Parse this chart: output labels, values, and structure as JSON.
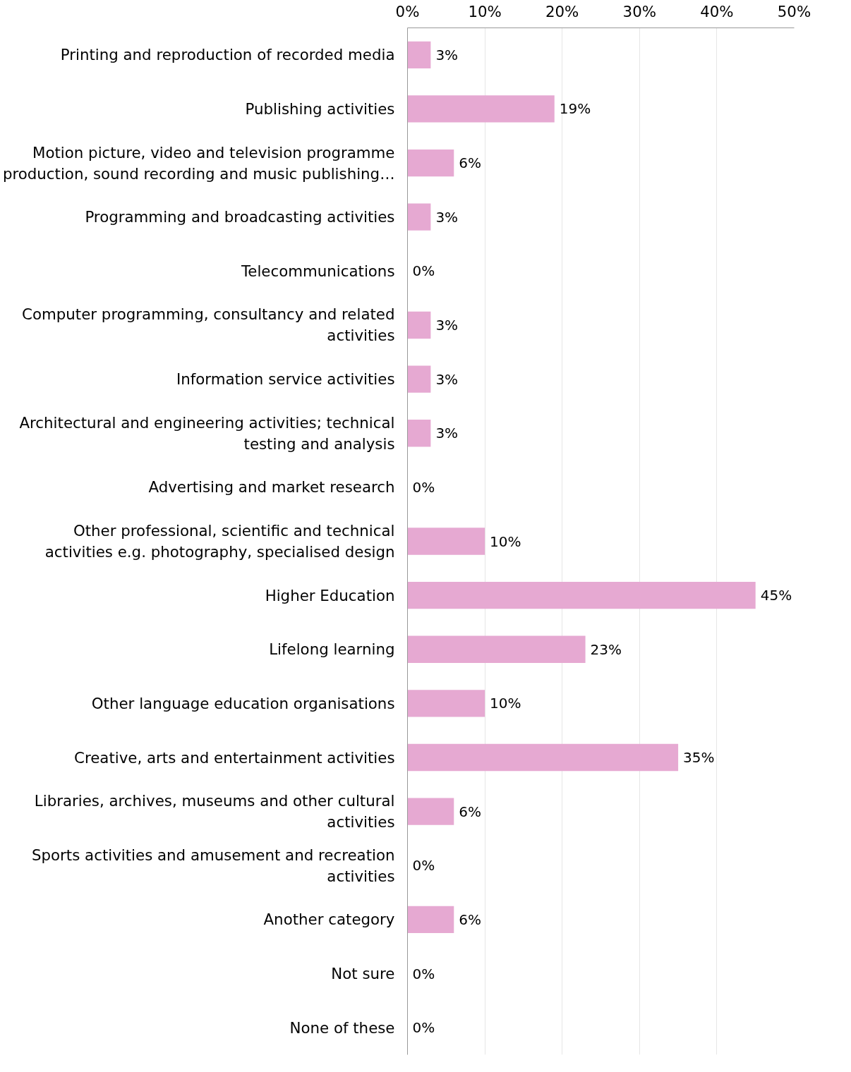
{
  "chart_data": {
    "type": "bar",
    "orientation": "horizontal",
    "categories": [
      "Printing and reproduction of recorded media",
      "Publishing activities",
      "Motion picture, video and television programme\nproduction, sound recording and music publishing…",
      "Programming and broadcasting activities",
      "Telecommunications",
      "Computer programming, consultancy and related\nactivities",
      "Information service activities",
      "Architectural and engineering activities; technical\ntesting and analysis",
      "Advertising and market research",
      "Other professional, scientific and technical\nactivities e.g. photography, specialised design",
      "Higher Education",
      "Lifelong learning",
      "Other language education organisations",
      "Creative, arts and entertainment activities",
      "Libraries, archives, museums and other cultural\nactivities",
      "Sports activities and amusement and recreation\nactivities",
      "Another category",
      "Not sure",
      "None of these"
    ],
    "values": [
      3,
      19,
      6,
      3,
      0,
      3,
      3,
      3,
      0,
      10,
      45,
      23,
      10,
      35,
      6,
      0,
      6,
      0,
      0
    ],
    "color": "#e6a9d2",
    "xlim": [
      0,
      50
    ],
    "xticks": [
      {
        "value": 0,
        "label": "0%"
      },
      {
        "value": 10,
        "label": "10%"
      },
      {
        "value": 20,
        "label": "20%"
      },
      {
        "value": 30,
        "label": "30%"
      },
      {
        "value": 40,
        "label": "40%"
      },
      {
        "value": 50,
        "label": "50%"
      }
    ],
    "value_labels": [
      "3%",
      "19%",
      "6%",
      "3%",
      "0%",
      "3%",
      "3%",
      "3%",
      "0%",
      "10%",
      "45%",
      "23%",
      "10%",
      "35%",
      "6%",
      "0%",
      "6%",
      "0%",
      "0%"
    ],
    "grid": "x"
  }
}
